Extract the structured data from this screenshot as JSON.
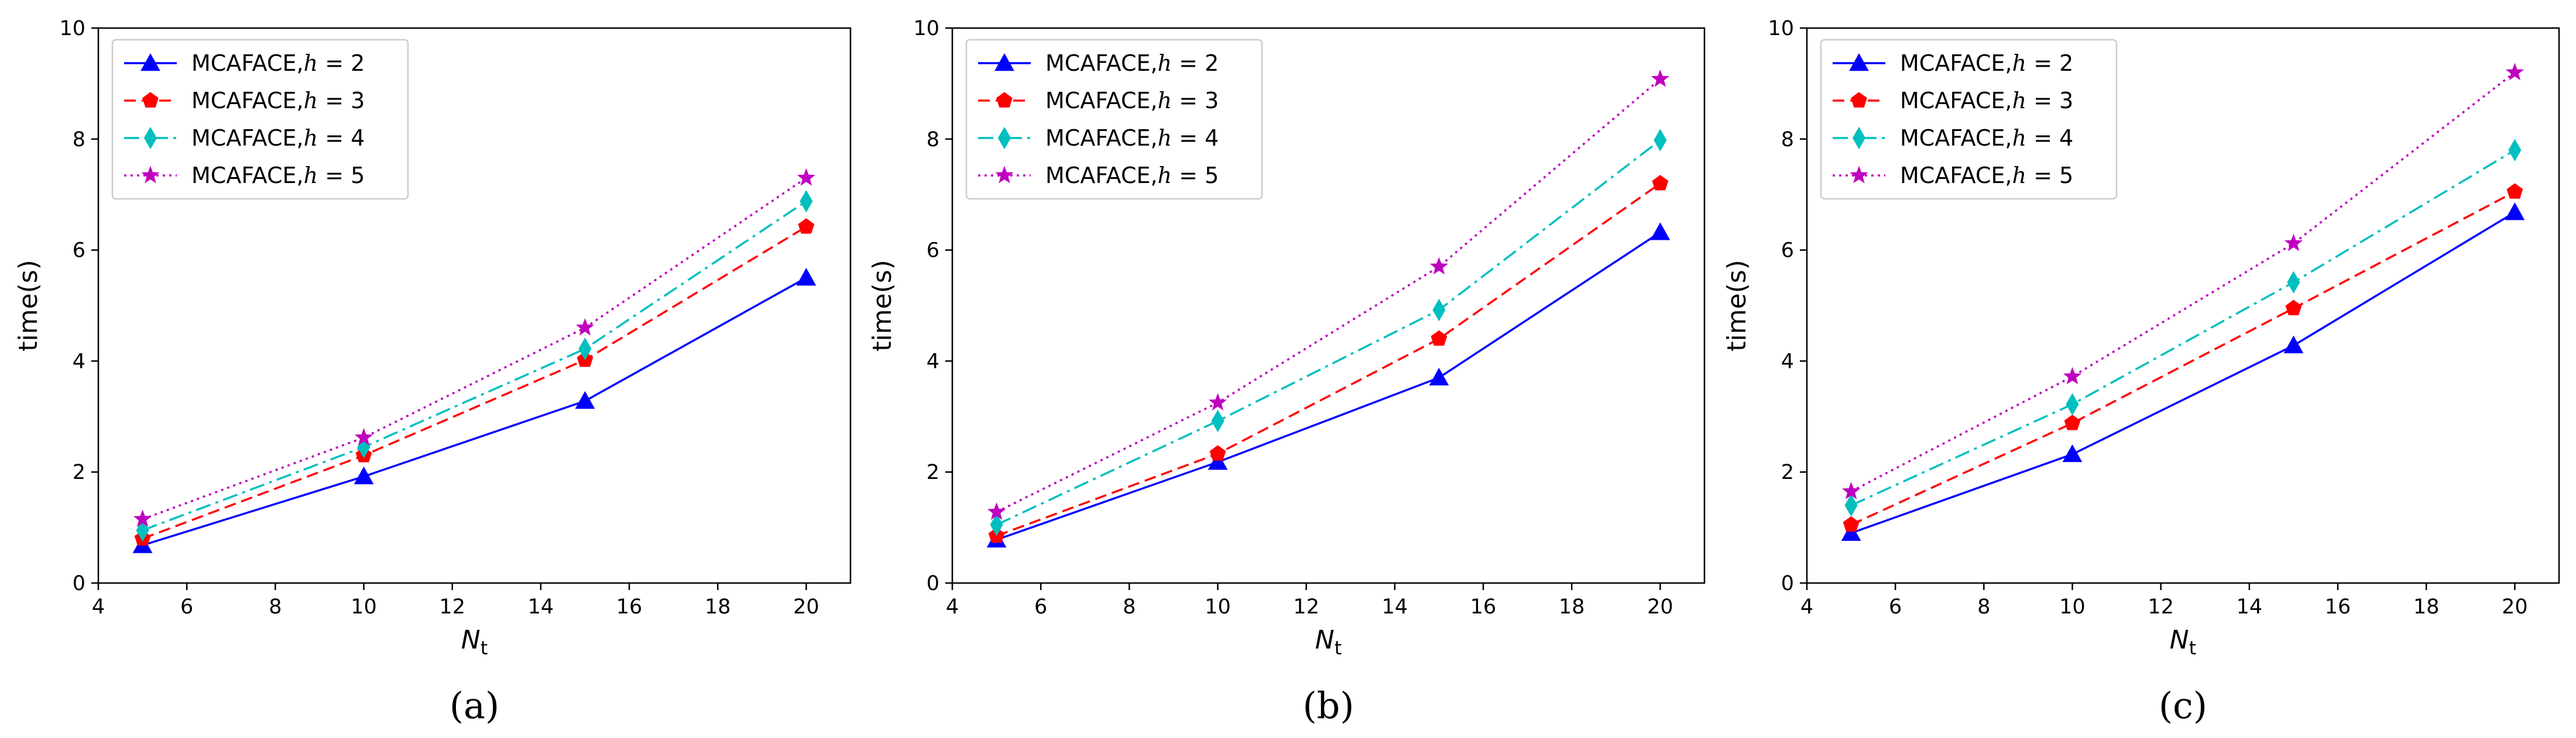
{
  "figure": {
    "xlabel_main": "N",
    "xlabel_sub": "t",
    "ylabel": "time(s)"
  },
  "series_style": [
    {
      "color": "#0000ff",
      "marker": "triangle",
      "dash": ""
    },
    {
      "color": "#ff0000",
      "marker": "pentagon",
      "dash": "20,10"
    },
    {
      "color": "#00bfbf",
      "marker": "diamond",
      "dash": "26,9,5,9"
    },
    {
      "color": "#bf00bf",
      "marker": "star",
      "dash": "4,7"
    }
  ],
  "legend_prefix": "MCAFACE,",
  "legend_var": "h",
  "legend_eq": " = ",
  "chart_data": [
    {
      "type": "line",
      "panel": "(a)",
      "x": [
        5,
        10,
        15,
        20
      ],
      "xlim": [
        4,
        21
      ],
      "ylim": [
        0,
        10
      ],
      "xticks": [
        4,
        6,
        8,
        10,
        12,
        14,
        16,
        18,
        20
      ],
      "yticks": [
        0,
        2,
        4,
        6,
        8,
        10
      ],
      "xlabel": "Nt",
      "ylabel": "time(s)",
      "legend_position": "top-left",
      "series": [
        {
          "name": "MCAFACE,h = 2",
          "h": "2",
          "values": [
            0.68,
            1.92,
            3.28,
            5.5
          ]
        },
        {
          "name": "MCAFACE,h = 3",
          "h": "3",
          "values": [
            0.8,
            2.3,
            4.02,
            6.42
          ]
        },
        {
          "name": "MCAFACE,h = 4",
          "h": "4",
          "values": [
            0.95,
            2.45,
            4.22,
            6.88
          ]
        },
        {
          "name": "MCAFACE,h = 5",
          "h": "5",
          "values": [
            1.15,
            2.62,
            4.6,
            7.3
          ]
        }
      ]
    },
    {
      "type": "line",
      "panel": "(b)",
      "x": [
        5,
        10,
        15,
        20
      ],
      "xlim": [
        4,
        21
      ],
      "ylim": [
        0,
        10
      ],
      "xticks": [
        4,
        6,
        8,
        10,
        12,
        14,
        16,
        18,
        20
      ],
      "yticks": [
        0,
        2,
        4,
        6,
        8,
        10
      ],
      "xlabel": "Nt",
      "ylabel": "time(s)",
      "legend_position": "top-left",
      "series": [
        {
          "name": "MCAFACE,h = 2",
          "h": "2",
          "values": [
            0.78,
            2.18,
            3.7,
            6.32
          ]
        },
        {
          "name": "MCAFACE,h = 3",
          "h": "3",
          "values": [
            0.85,
            2.33,
            4.4,
            7.2
          ]
        },
        {
          "name": "MCAFACE,h = 4",
          "h": "4",
          "values": [
            1.05,
            2.92,
            4.92,
            7.98
          ]
        },
        {
          "name": "MCAFACE,h = 5",
          "h": "5",
          "values": [
            1.28,
            3.25,
            5.7,
            9.08
          ]
        }
      ]
    },
    {
      "type": "line",
      "panel": "(c)",
      "x": [
        5,
        10,
        15,
        20
      ],
      "xlim": [
        4,
        21
      ],
      "ylim": [
        0,
        10
      ],
      "xticks": [
        4,
        6,
        8,
        10,
        12,
        14,
        16,
        18,
        20
      ],
      "yticks": [
        0,
        2,
        4,
        6,
        8,
        10
      ],
      "xlabel": "Nt",
      "ylabel": "time(s)",
      "legend_position": "top-left",
      "series": [
        {
          "name": "MCAFACE,h = 2",
          "h": "2",
          "values": [
            0.9,
            2.32,
            4.28,
            6.68
          ]
        },
        {
          "name": "MCAFACE,h = 3",
          "h": "3",
          "values": [
            1.05,
            2.88,
            4.95,
            7.05
          ]
        },
        {
          "name": "MCAFACE,h = 4",
          "h": "4",
          "values": [
            1.4,
            3.22,
            5.42,
            7.8
          ]
        },
        {
          "name": "MCAFACE,h = 5",
          "h": "5",
          "values": [
            1.65,
            3.72,
            6.12,
            9.2
          ]
        }
      ]
    }
  ]
}
